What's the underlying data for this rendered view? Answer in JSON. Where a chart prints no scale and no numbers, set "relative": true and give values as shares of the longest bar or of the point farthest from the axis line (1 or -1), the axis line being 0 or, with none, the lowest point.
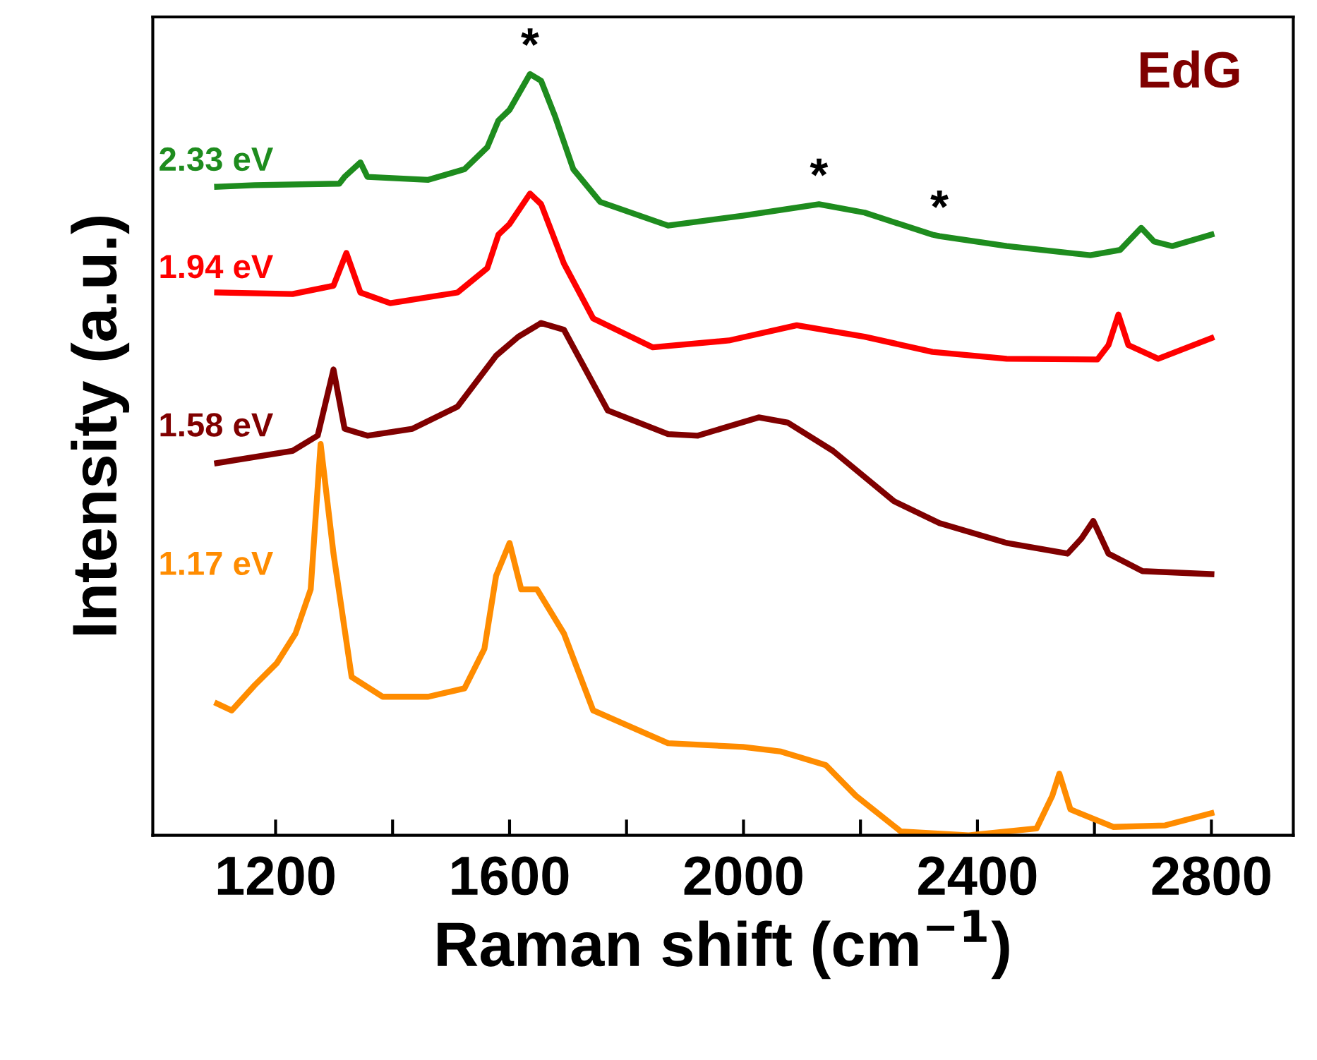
{
  "chart_data": {
    "type": "line",
    "relative": true,
    "xlabel": "Raman shift (cm$^{−1}$)",
    "ylabel": "Intensity (a.u.)",
    "xlim": [
      990,
      2940
    ],
    "xticks": [
      1200,
      {
        "value": 1400,
        "label": null
      },
      1600,
      {
        "value": 1800,
        "label": null
      },
      2000,
      {
        "value": 2200,
        "label": null
      },
      2400,
      {
        "value": 2600,
        "label": null
      },
      2800
    ],
    "grid": false,
    "legend": false,
    "marker": "none",
    "line_style": "solid",
    "annotations": [
      "EdG",
      {
        "text": "*",
        "x": 1635,
        "y": 1.0
      },
      {
        "text": "*",
        "x": 2129,
        "y": 0.829
      },
      {
        "text": "*",
        "x": 2335,
        "y": 0.787
      }
    ],
    "series": [
      {
        "name": "2.33 eV",
        "color": "#1e8c1e",
        "x": [
          1100,
          1164,
          1309,
          1318,
          1345,
          1357,
          1461,
          1523,
          1562,
          1581,
          1600,
          1635,
          1654,
          1678,
          1709,
          1755,
          1871,
          1999,
          2129,
          2207,
          2323,
          2335,
          2450,
          2593,
          2644,
          2680,
          2702,
          2733,
          2800
        ],
        "values": [
          0.852,
          0.854,
          0.856,
          0.865,
          0.884,
          0.865,
          0.861,
          0.875,
          0.904,
          0.939,
          0.953,
          1.0,
          0.991,
          0.944,
          0.875,
          0.832,
          0.801,
          0.814,
          0.829,
          0.818,
          0.789,
          0.787,
          0.774,
          0.762,
          0.769,
          0.798,
          0.78,
          0.774,
          0.789
        ]
      },
      {
        "name": "1.94 eV",
        "color": "#ff0000",
        "x": [
          1100,
          1229,
          1299,
          1321,
          1345,
          1396,
          1511,
          1562,
          1581,
          1600,
          1635,
          1654,
          1693,
          1743,
          1845,
          1975,
          2091,
          2207,
          2323,
          2450,
          2605,
          2624,
          2641,
          2658,
          2709,
          2800
        ],
        "values": [
          0.713,
          0.711,
          0.722,
          0.765,
          0.713,
          0.699,
          0.713,
          0.745,
          0.789,
          0.803,
          0.843,
          0.829,
          0.751,
          0.679,
          0.641,
          0.65,
          0.67,
          0.655,
          0.635,
          0.626,
          0.625,
          0.644,
          0.684,
          0.644,
          0.626,
          0.653
        ]
      },
      {
        "name": "1.58 eV",
        "color": "#800000",
        "x": [
          1100,
          1229,
          1272,
          1299,
          1318,
          1357,
          1434,
          1511,
          1577,
          1615,
          1654,
          1693,
          1768,
          1871,
          1922,
          2026,
          2076,
          2153,
          2257,
          2335,
          2450,
          2554,
          2578,
          2598,
          2624,
          2682,
          2800
        ],
        "values": [
          0.489,
          0.505,
          0.525,
          0.612,
          0.534,
          0.525,
          0.534,
          0.563,
          0.63,
          0.655,
          0.673,
          0.664,
          0.558,
          0.527,
          0.525,
          0.549,
          0.542,
          0.505,
          0.439,
          0.41,
          0.384,
          0.37,
          0.39,
          0.413,
          0.37,
          0.347,
          0.343
        ]
      },
      {
        "name": "1.17 eV",
        "color": "#ff8c00",
        "x": [
          1100,
          1125,
          1164,
          1202,
          1234,
          1260,
          1277,
          1299,
          1330,
          1383,
          1461,
          1523,
          1557,
          1577,
          1600,
          1620,
          1647,
          1693,
          1743,
          1871,
          1999,
          2064,
          2141,
          2192,
          2269,
          2385,
          2501,
          2528,
          2540,
          2559,
          2632,
          2721,
          2800
        ],
        "values": [
          0.173,
          0.164,
          0.197,
          0.226,
          0.265,
          0.323,
          0.514,
          0.37,
          0.208,
          0.182,
          0.182,
          0.193,
          0.245,
          0.341,
          0.384,
          0.323,
          0.323,
          0.265,
          0.164,
          0.121,
          0.116,
          0.11,
          0.092,
          0.052,
          0.005,
          0.0,
          0.009,
          0.052,
          0.081,
          0.034,
          0.011,
          0.013,
          0.029
        ]
      }
    ]
  }
}
